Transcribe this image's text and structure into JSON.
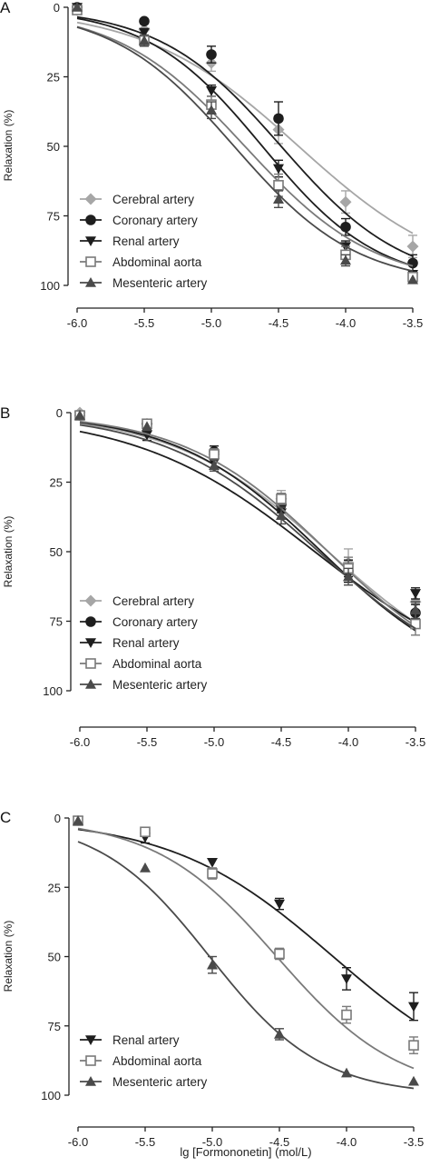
{
  "colors": {
    "cerebral": "#a6a6a6",
    "coronary": "#1e1e1e",
    "renal": "#1e1e1e",
    "abdominal": "#7a7a7a",
    "mesenteric": "#4a4a4a"
  },
  "chart_data": [
    {
      "panel": "A",
      "type": "line",
      "ylabel": "Relaxation (%)",
      "xlabel": "",
      "xlim": [
        -6.0,
        -3.5
      ],
      "ylim": [
        0,
        100
      ],
      "y_inverted": true,
      "x_ticks": [
        "-6.0",
        "-5.5",
        "-5.0",
        "-4.5",
        "-4.0",
        "-3.5"
      ],
      "y_ticks": [
        "0",
        "25",
        "50",
        "75",
        "100"
      ],
      "legend_position": "bottom-left",
      "x": [
        -6.0,
        -5.5,
        -5.0,
        -4.5,
        -4.0,
        -3.5
      ],
      "series": [
        {
          "name": "Cerebral artery",
          "marker": "diamond",
          "color": "#a6a6a6",
          "values": [
            1,
            8,
            20,
            44,
            70,
            86
          ],
          "err": [
            1,
            2,
            3,
            5,
            4,
            4
          ],
          "curve": {
            "ec50": -4.35,
            "hill": 0.75,
            "top": 100
          }
        },
        {
          "name": "Coronary artery",
          "marker": "circle",
          "color": "#1e1e1e",
          "values": [
            0,
            5,
            17,
            40,
            79,
            92
          ],
          "err": [
            1,
            1,
            3,
            6,
            3,
            3
          ],
          "curve": {
            "ec50": -4.48,
            "hill": 0.95,
            "top": 100
          }
        },
        {
          "name": "Renal artery",
          "marker": "triangle-down",
          "color": "#1e1e1e",
          "values": [
            0,
            9,
            30,
            58,
            86,
            96
          ],
          "err": [
            1,
            1,
            2,
            3,
            2,
            1
          ],
          "curve": {
            "ec50": -4.62,
            "hill": 1.0,
            "top": 100
          }
        },
        {
          "name": "Abdominal aorta",
          "marker": "square-open",
          "color": "#7a7a7a",
          "values": [
            1,
            12,
            35,
            64,
            89,
            97
          ],
          "err": [
            1,
            2,
            3,
            4,
            3,
            1
          ],
          "curve": {
            "ec50": -4.75,
            "hill": 0.9,
            "top": 100
          }
        },
        {
          "name": "Mesenteric artery",
          "marker": "triangle-up",
          "color": "#4a4a4a",
          "values": [
            0,
            12,
            37,
            69,
            91,
            98
          ],
          "err": [
            1,
            2,
            3,
            3,
            2,
            1
          ],
          "curve": {
            "ec50": -4.83,
            "hill": 0.95,
            "top": 100
          }
        }
      ]
    },
    {
      "panel": "B",
      "type": "line",
      "ylabel": "Relaxation (%)",
      "xlabel": "",
      "xlim": [
        -6.0,
        -3.5
      ],
      "ylim": [
        0,
        100
      ],
      "y_inverted": true,
      "x_ticks": [
        "-6.0",
        "-5.5",
        "-5.0",
        "-4.5",
        "-4.0",
        "-3.5"
      ],
      "y_ticks": [
        "0",
        "25",
        "50",
        "75",
        "100"
      ],
      "legend_position": "bottom-left",
      "x": [
        -6.0,
        -5.5,
        -5.0,
        -4.5,
        -4.0,
        -3.5
      ],
      "series": [
        {
          "name": "Cerebral artery",
          "marker": "diamond",
          "color": "#a6a6a6",
          "values": [
            0,
            4,
            15,
            31,
            54,
            68
          ],
          "err": [
            1,
            1,
            2,
            3,
            5,
            4
          ],
          "curve": {
            "ec50": -4.15,
            "hill": 0.75,
            "top": 100
          }
        },
        {
          "name": "Coronary artery",
          "marker": "circle",
          "color": "#1e1e1e",
          "values": [
            1,
            4,
            14,
            33,
            57,
            72
          ],
          "err": [
            1,
            1,
            2,
            3,
            4,
            3
          ],
          "curve": {
            "ec50": -4.2,
            "hill": 0.8,
            "top": 100
          }
        },
        {
          "name": "Renal artery",
          "marker": "triangle-down",
          "color": "#1e1e1e",
          "values": [
            1,
            8,
            18,
            36,
            56,
            65
          ],
          "err": [
            1,
            2,
            2,
            2,
            3,
            2
          ],
          "curve": {
            "ec50": -4.25,
            "hill": 0.65,
            "top": 100
          }
        },
        {
          "name": "Abdominal aorta",
          "marker": "square-open",
          "color": "#7a7a7a",
          "values": [
            1,
            4,
            15,
            31,
            56,
            76
          ],
          "err": [
            1,
            1,
            2,
            2,
            4,
            4
          ],
          "curve": {
            "ec50": -4.15,
            "hill": 0.8,
            "top": 100
          }
        },
        {
          "name": "Mesenteric artery",
          "marker": "triangle-up",
          "color": "#4a4a4a",
          "values": [
            1,
            5,
            19,
            37,
            59,
            71
          ],
          "err": [
            1,
            1,
            2,
            3,
            3,
            3
          ],
          "curve": {
            "ec50": -4.22,
            "hill": 0.75,
            "top": 100
          }
        }
      ]
    },
    {
      "panel": "C",
      "type": "line",
      "ylabel": "Relaxation (%)",
      "xlabel": "lg [Formononetin] (mol/L)",
      "xlim": [
        -6.0,
        -3.5
      ],
      "ylim": [
        0,
        100
      ],
      "y_inverted": true,
      "x_ticks": [
        "-6.0",
        "-5.5",
        "-5.0",
        "-4.5",
        "-4.0",
        "-3.5"
      ],
      "y_ticks": [
        "0",
        "25",
        "50",
        "75",
        "100"
      ],
      "legend_position": "bottom-left",
      "x": [
        -6.0,
        -5.5,
        -5.0,
        -4.5,
        -4.0,
        -3.5
      ],
      "series": [
        {
          "name": "Renal artery",
          "marker": "triangle-down",
          "color": "#1e1e1e",
          "values": [
            1,
            7,
            16,
            31,
            58,
            68
          ],
          "err": [
            1,
            2,
            1,
            2,
            4,
            5
          ],
          "curve": {
            "ec50": -4.1,
            "hill": 0.72,
            "top": 100
          }
        },
        {
          "name": "Abdominal aorta",
          "marker": "square-open",
          "color": "#7a7a7a",
          "values": [
            1,
            5,
            20,
            49,
            71,
            82
          ],
          "err": [
            1,
            1,
            2,
            2,
            3,
            3
          ],
          "curve": {
            "ec50": -4.52,
            "hill": 0.95,
            "top": 100
          }
        },
        {
          "name": "Mesenteric artery",
          "marker": "triangle-up",
          "color": "#4a4a4a",
          "values": [
            1,
            18,
            53,
            78,
            92,
            95
          ],
          "err": [
            1,
            1,
            3,
            2,
            1,
            1
          ],
          "curve": {
            "ec50": -5.02,
            "hill": 1.05,
            "top": 100
          }
        }
      ]
    }
  ]
}
